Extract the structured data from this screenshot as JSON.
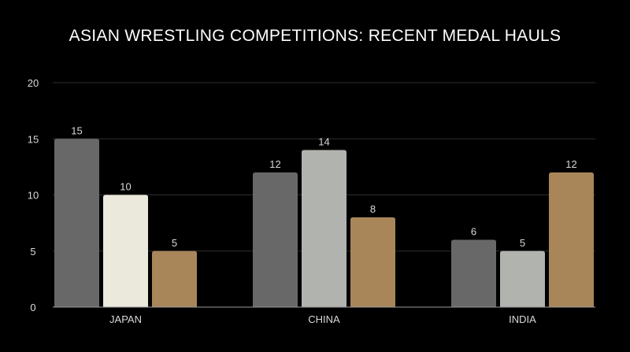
{
  "chart_data": {
    "type": "bar",
    "title": "ASIAN WRESTLING COMPETITIONS: RECENT MEDAL HAULS",
    "xlabel": "",
    "ylabel": "",
    "categories": [
      "JAPAN",
      "CHINA",
      "INDIA"
    ],
    "series": [
      {
        "values": [
          15,
          12,
          6
        ]
      },
      {
        "values": [
          10,
          14,
          5
        ]
      },
      {
        "values": [
          5,
          8,
          12
        ]
      }
    ],
    "bar_colors": [
      [
        "#686868",
        "#686868",
        "#686868"
      ],
      [
        "#ebe8dc",
        "#b1b3ae",
        "#b1b3ae"
      ],
      [
        "#a8865a",
        "#a8865a",
        "#a8865a"
      ]
    ],
    "ylim": [
      0,
      20
    ],
    "yticks": [
      0,
      5,
      10,
      15,
      20
    ],
    "grid": true,
    "legend": "none",
    "background": "#000000",
    "text_color": "#d9d9d9",
    "grid_color": "#2e2e2e",
    "axis_color": "#9a9a9a"
  }
}
